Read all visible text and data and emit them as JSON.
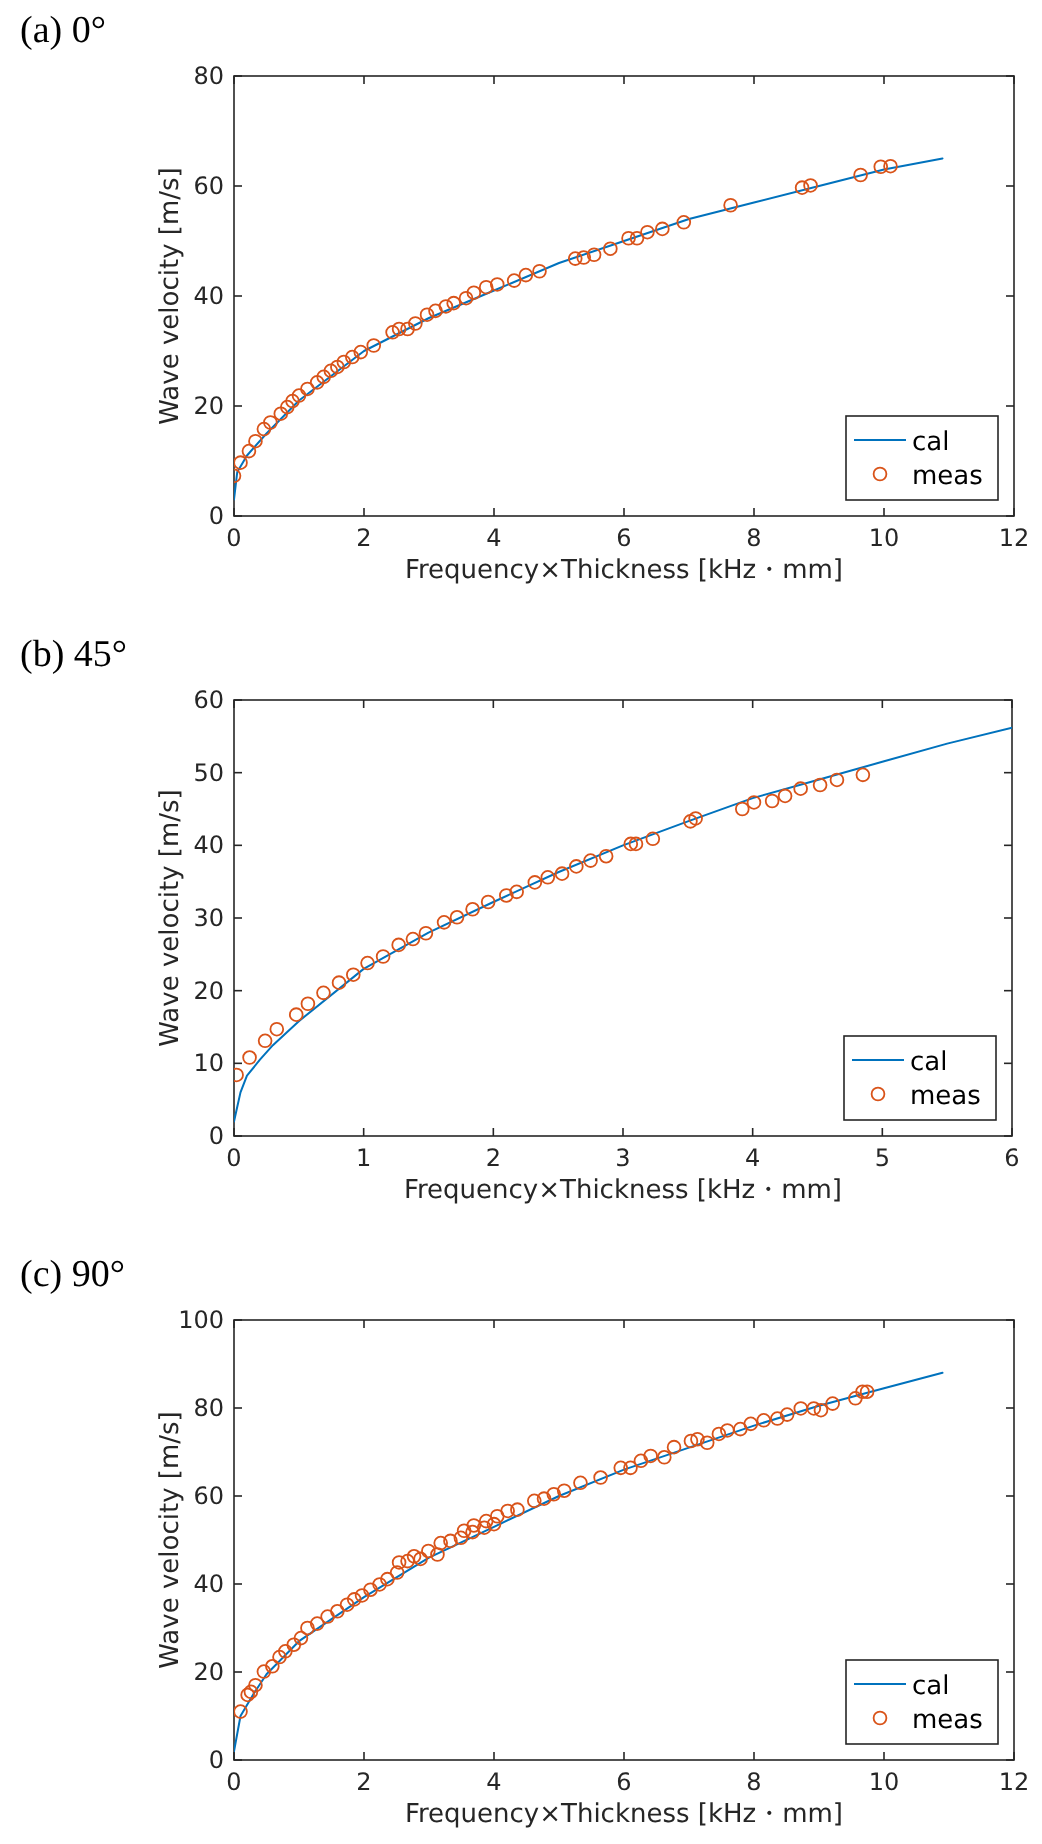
{
  "chart_data": [
    {
      "type": "line",
      "title": "(a)  0°",
      "xlabel": "Frequency×Thickness [kHz・mm]",
      "ylabel": "Wave velocity [m/s]",
      "xlim": [
        0,
        12
      ],
      "ylim": [
        0,
        80
      ],
      "xticks": [
        0,
        2,
        4,
        6,
        8,
        10,
        12
      ],
      "yticks": [
        0,
        20,
        40,
        60,
        80
      ],
      "legend": "bottom right",
      "series": [
        {
          "name": "cal",
          "type": "line",
          "line_style": "solid",
          "color": "#0072bd",
          "x": [
            0,
            0.05,
            0.2,
            0.5,
            1,
            2,
            3,
            4,
            5,
            6,
            7,
            8,
            9,
            10,
            10.9
          ],
          "values": [
            3,
            8,
            11,
            15,
            21,
            30,
            36,
            41,
            46,
            50,
            54,
            57,
            60,
            63,
            65
          ]
        },
        {
          "name": "meas",
          "type": "scatter",
          "marker": "circle",
          "color": "#d95319",
          "x": [
            0,
            0.1,
            0.23,
            0.33,
            0.46,
            0.56,
            0.72,
            0.82,
            0.9,
            1.0,
            1.13,
            1.28,
            1.38,
            1.49,
            1.59,
            1.69,
            1.82,
            1.95,
            2.15,
            2.44,
            2.54,
            2.67,
            2.79,
            2.97,
            3.1,
            3.26,
            3.38,
            3.57,
            3.69,
            3.88,
            4.05,
            4.31,
            4.49,
            4.7,
            5.25,
            5.38,
            5.54,
            5.79,
            6.07,
            6.2,
            6.36,
            6.59,
            6.92,
            7.64,
            8.74,
            8.87,
            9.64,
            9.95,
            10.1
          ],
          "values": [
            7.3,
            9.7,
            11.8,
            13.6,
            15.8,
            17,
            18.6,
            19.8,
            20.9,
            21.9,
            23.1,
            24.3,
            25.3,
            26.4,
            27.1,
            28,
            28.9,
            29.8,
            31,
            33.4,
            34,
            34,
            35,
            36.6,
            37.3,
            38.1,
            38.7,
            39.6,
            40.6,
            41.6,
            42.1,
            42.8,
            43.8,
            44.5,
            46.8,
            47,
            47.5,
            48.6,
            50.5,
            50.5,
            51.6,
            52.2,
            53.4,
            56.5,
            59.7,
            60.1,
            62,
            63.5,
            63.6
          ]
        }
      ]
    },
    {
      "type": "line",
      "title": "(b)  45°",
      "xlabel": "Frequency×Thickness [kHz・mm]",
      "ylabel": "Wave velocity [m/s]",
      "xlim": [
        0,
        6
      ],
      "ylim": [
        0,
        60
      ],
      "xticks": [
        0,
        1,
        2,
        3,
        4,
        5,
        6
      ],
      "yticks": [
        0,
        10,
        20,
        30,
        40,
        50,
        60
      ],
      "legend": "bottom right",
      "series": [
        {
          "name": "cal",
          "type": "line",
          "line_style": "solid",
          "color": "#0072bd",
          "x": [
            0,
            0.05,
            0.1,
            0.2,
            0.3,
            0.5,
            1,
            1.5,
            2,
            2.5,
            3,
            3.5,
            4,
            4.5,
            5,
            5.5,
            6
          ],
          "values": [
            2,
            6,
            8.3,
            10.5,
            12.5,
            15.8,
            23,
            28,
            32.2,
            36.3,
            40,
            43.3,
            46.5,
            49,
            51.5,
            54,
            56.2
          ]
        },
        {
          "name": "meas",
          "type": "scatter",
          "marker": "circle",
          "color": "#d95319",
          "x": [
            0.02,
            0.12,
            0.24,
            0.33,
            0.48,
            0.57,
            0.69,
            0.81,
            0.92,
            1.03,
            1.15,
            1.27,
            1.38,
            1.48,
            1.62,
            1.72,
            1.84,
            1.96,
            2.1,
            2.18,
            2.32,
            2.42,
            2.53,
            2.64,
            2.75,
            2.87,
            3.06,
            3.1,
            3.23,
            3.52,
            3.56,
            3.92,
            4.01,
            4.15,
            4.25,
            4.37,
            4.52,
            4.65,
            4.85
          ],
          "values": [
            8.4,
            10.8,
            13.1,
            14.7,
            16.7,
            18.2,
            19.7,
            21.1,
            22.2,
            23.8,
            24.7,
            26.3,
            27.1,
            27.9,
            29.4,
            30.1,
            31.2,
            32.2,
            33.1,
            33.6,
            34.9,
            35.6,
            36.1,
            37.1,
            37.9,
            38.5,
            40.2,
            40.2,
            40.9,
            43.3,
            43.7,
            45,
            45.9,
            46.1,
            46.8,
            47.8,
            48.3,
            49,
            49.7
          ]
        }
      ]
    },
    {
      "type": "line",
      "title": "(c)  90°",
      "xlabel": "Frequency×Thickness [kHz・mm]",
      "ylabel": "Wave velocity [m/s]",
      "xlim": [
        0,
        12
      ],
      "ylim": [
        0,
        100
      ],
      "xticks": [
        0,
        2,
        4,
        6,
        8,
        10,
        12
      ],
      "yticks": [
        0,
        20,
        40,
        60,
        80,
        100
      ],
      "legend": "bottom right",
      "series": [
        {
          "name": "cal",
          "type": "line",
          "line_style": "solid",
          "color": "#0072bd",
          "x": [
            0,
            0.1,
            0.3,
            0.5,
            1,
            2,
            3,
            4,
            5,
            6,
            7,
            8,
            9,
            10,
            10.9
          ],
          "values": [
            2,
            10,
            15,
            19.5,
            27,
            37,
            46,
            53,
            60,
            66,
            71,
            76,
            80.5,
            84.5,
            88
          ]
        },
        {
          "name": "meas",
          "type": "scatter",
          "marker": "circle",
          "color": "#d95319",
          "x": [
            0.1,
            0.21,
            0.26,
            0.33,
            0.46,
            0.59,
            0.7,
            0.79,
            0.92,
            1.03,
            1.13,
            1.28,
            1.44,
            1.59,
            1.74,
            1.85,
            1.97,
            2.1,
            2.24,
            2.36,
            2.51,
            2.54,
            2.67,
            2.77,
            2.87,
            2.99,
            3.13,
            3.18,
            3.33,
            3.49,
            3.54,
            3.67,
            3.69,
            3.85,
            3.88,
            4.0,
            4.05,
            4.21,
            4.36,
            4.62,
            4.77,
            4.92,
            5.08,
            5.33,
            5.64,
            5.95,
            6.1,
            6.26,
            6.41,
            6.62,
            6.77,
            7.03,
            7.13,
            7.28,
            7.46,
            7.59,
            7.79,
            7.95,
            8.15,
            8.36,
            8.51,
            8.72,
            8.92,
            9.03,
            9.21,
            9.56,
            9.67,
            9.74
          ],
          "values": [
            11,
            14.8,
            15.5,
            17,
            20.1,
            21.3,
            23.4,
            24.7,
            26.2,
            27.7,
            30,
            31,
            32.6,
            33.8,
            35.3,
            36.5,
            37.4,
            38.7,
            39.9,
            41.1,
            42.6,
            44.9,
            45.2,
            46.3,
            45.7,
            47.5,
            46.7,
            49.3,
            49.8,
            50.5,
            52.1,
            51.8,
            53.3,
            52.8,
            54.3,
            53.6,
            55.4,
            56.6,
            56.9,
            58.9,
            59.4,
            60.4,
            61.2,
            63,
            64.2,
            66.4,
            66.4,
            68,
            69.1,
            68.8,
            71.1,
            72.5,
            72.9,
            72.1,
            74.1,
            74.9,
            75.2,
            76.4,
            77.2,
            77.6,
            78.5,
            79.9,
            79.9,
            79.5,
            81,
            82.2,
            83.7,
            83.7
          ]
        }
      ]
    }
  ]
}
